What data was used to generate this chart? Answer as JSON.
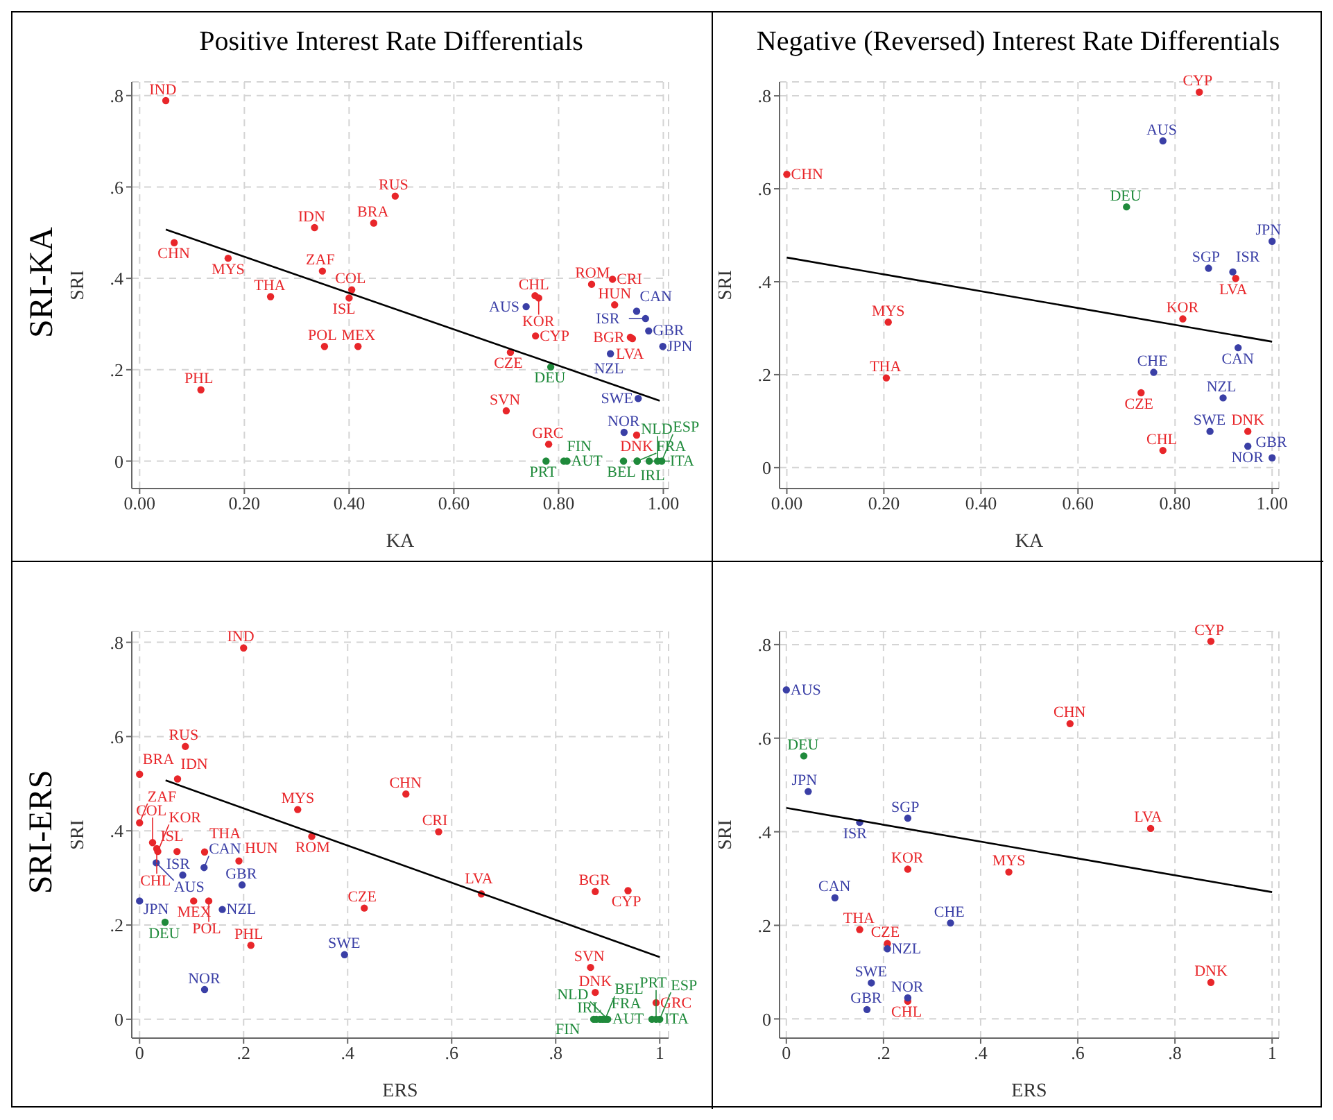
{
  "chart_data": [
    {
      "type": "scatter",
      "title": "Positive Interest Rate Differentials",
      "annotations": [
        "SRI-KA"
      ],
      "xlabel": "KA",
      "ylabel": "SRI",
      "xlim": [
        -0.015,
        1.01
      ],
      "ylim": [
        -0.06,
        0.83
      ],
      "xticks": [
        {
          "value": 0,
          "label": "0.00"
        },
        {
          "value": 0.2,
          "label": "0.20"
        },
        {
          "value": 0.4,
          "label": "0.40"
        },
        {
          "value": 0.6,
          "label": "0.60"
        },
        {
          "value": 0.8,
          "label": "0.80"
        },
        {
          "value": 1,
          "label": "1.00"
        }
      ],
      "yticks": [
        {
          "value": 0,
          "label": "0"
        },
        {
          "value": 0.2,
          "label": ".2"
        },
        {
          "value": 0.4,
          "label": ".4"
        },
        {
          "value": 0.6,
          "label": ".6"
        },
        {
          "value": 0.8,
          "label": ".8"
        }
      ],
      "grid": true,
      "marker": "circle",
      "series": [
        {
          "color": "#e8262a",
          "x": [
            0.05,
            0.066,
            0.169,
            0.25,
            0.349,
            0.334,
            0.488,
            0.447,
            0.405,
            0.4,
            0.353,
            0.417,
            0.117,
            0.755,
            0.762,
            0.863,
            0.903,
            0.907,
            0.756,
            0.708,
            0.937,
            0.941,
            0.7,
            0.781,
            0.949
          ],
          "values": [
            0.789,
            0.478,
            0.444,
            0.36,
            0.416,
            0.511,
            0.58,
            0.521,
            0.375,
            0.357,
            0.251,
            0.251,
            0.156,
            0.362,
            0.357,
            0.387,
            0.398,
            0.342,
            0.274,
            0.238,
            0.271,
            0.268,
            0.11,
            0.037,
            0.057
          ],
          "value_labels": [
            "IND",
            "CHN",
            "MYS",
            "THA",
            "ZAF",
            "IDN",
            "RUS",
            "BRA",
            "COL",
            "ISL",
            "POL",
            "MEX",
            "PHL",
            "CHL",
            "KOR",
            "ROM",
            "CRI",
            "HUN",
            "CYP",
            "CZE",
            "BGR",
            "LVA",
            "SVN",
            "GRC",
            "DNK"
          ]
        },
        {
          "color": "#3a3fa6",
          "x": [
            0.738,
            0.949,
            0.966,
            0.972,
            0.999,
            0.899,
            0.952,
            0.925
          ],
          "values": [
            0.338,
            0.328,
            0.312,
            0.285,
            0.251,
            0.235,
            0.137,
            0.063
          ],
          "value_labels": [
            "AUS",
            "CAN",
            "ISR",
            "GBR",
            "JPN",
            "NZL",
            "SWE",
            "NOR"
          ]
        },
        {
          "color": "#1f8a3b",
          "x": [
            0.785,
            0.776,
            0.81,
            0.816,
            0.924,
            0.95,
            0.95,
            0.973,
            0.989,
            0.997
          ],
          "values": [
            0.206,
            0,
            0,
            0,
            0,
            0,
            0,
            0,
            0,
            0
          ],
          "value_labels": [
            "DEU",
            "PRT",
            "FIN",
            "AUT",
            "BEL",
            "IRL",
            "FRA",
            "ITA",
            "NLD",
            "ESP"
          ]
        },
        {
          "type": "line",
          "marker": "none",
          "color": "#000000",
          "x": [
            0.05,
            0.993
          ],
          "values": [
            0.507,
            0.132
          ]
        }
      ]
    },
    {
      "type": "scatter",
      "title": "Negative (Reversed) Interest Rate Differentials",
      "xlabel": "KA",
      "ylabel": "SRI",
      "xlim": [
        -0.015,
        1.014
      ],
      "ylim": [
        -0.045,
        0.83
      ],
      "xticks": [
        {
          "value": 0,
          "label": "0.00"
        },
        {
          "value": 0.2,
          "label": "0.20"
        },
        {
          "value": 0.4,
          "label": "0.40"
        },
        {
          "value": 0.6,
          "label": "0.60"
        },
        {
          "value": 0.8,
          "label": "0.80"
        },
        {
          "value": 1,
          "label": "1.00"
        }
      ],
      "yticks": [
        0,
        {
          "value": 0.2,
          "label": ".2"
        },
        {
          "value": 0.4,
          "label": ".4"
        },
        {
          "value": 0.6,
          "label": ".6"
        },
        {
          "value": 0.8,
          "label": ".8"
        }
      ],
      "grid": true,
      "marker": "circle",
      "series": [
        {
          "color": "#e8262a",
          "x": [
            0.85,
            0,
            0.925,
            0.816,
            0.209,
            0.205,
            0.73,
            0.95,
            0.775
          ],
          "values": [
            0.808,
            0.631,
            0.407,
            0.32,
            0.313,
            0.193,
            0.161,
            0.078,
            0.037
          ],
          "value_labels": [
            "CYP",
            "CHN",
            "LVA",
            "KOR",
            "MYS",
            "THA",
            "CZE",
            "DNK",
            "CHL"
          ]
        },
        {
          "color": "#3a3fa6",
          "x": [
            0.775,
            1,
            0.869,
            0.919,
            0.93,
            0.756,
            0.899,
            0.872,
            0.95,
            1
          ],
          "values": [
            0.703,
            0.487,
            0.429,
            0.421,
            0.258,
            0.205,
            0.15,
            0.078,
            0.046,
            0.021
          ],
          "value_labels": [
            "AUS",
            "JPN",
            "SGP",
            "ISR",
            "CAN",
            "CHE",
            "NZL",
            "SWE",
            "NOR",
            "GBR"
          ]
        },
        {
          "color": "#1f8a3b",
          "x": [
            0.7
          ],
          "values": [
            0.561
          ],
          "value_labels": [
            "DEU"
          ]
        },
        {
          "type": "line",
          "marker": "none",
          "color": "#000000",
          "x": [
            0,
            1
          ],
          "values": [
            0.452,
            0.271
          ]
        }
      ]
    },
    {
      "type": "scatter",
      "annotations": [
        "SRI-ERS"
      ],
      "xlabel": "ERS",
      "ylabel": "SRI",
      "xlim": [
        -0.015,
        1.017
      ],
      "ylim": [
        -0.04,
        0.823
      ],
      "xticks": [
        {
          "value": 0,
          "label": "0"
        },
        {
          "value": 0.2,
          "label": ".2"
        },
        {
          "value": 0.4,
          "label": ".4"
        },
        {
          "value": 0.6,
          "label": ".6"
        },
        {
          "value": 0.8,
          "label": ".8"
        },
        {
          "value": 1,
          "label": "1"
        }
      ],
      "yticks": [
        {
          "value": 0,
          "label": "0"
        },
        {
          "value": 0.2,
          "label": ".2"
        },
        {
          "value": 0.4,
          "label": ".4"
        },
        {
          "value": 0.6,
          "label": ".6"
        },
        {
          "value": 0.8,
          "label": ".8"
        }
      ],
      "grid": true,
      "marker": "circle",
      "series": [
        {
          "color": "#e8262a",
          "x": [
            0.2,
            0.088,
            0,
            0.073,
            0,
            0.025,
            0.033,
            0.035,
            0.072,
            0.125,
            0.191,
            0.104,
            0.133,
            0.214,
            0.304,
            0.331,
            0.512,
            0.575,
            0.657,
            0.876,
            0.939,
            0.432,
            0.867,
            0.876,
            0.993
          ],
          "values": [
            0.788,
            0.579,
            0.52,
            0.51,
            0.417,
            0.375,
            0.362,
            0.356,
            0.356,
            0.355,
            0.336,
            0.251,
            0.251,
            0.157,
            0.445,
            0.388,
            0.478,
            0.398,
            0.266,
            0.271,
            0.273,
            0.236,
            0.11,
            0.057,
            0.035
          ],
          "value_labels": [
            "IND",
            "RUS",
            "BRA",
            "IDN",
            "ZAF",
            "COL",
            "CHL",
            "KOR",
            "ISL",
            "THA",
            "HUN",
            "MEX",
            "POL",
            "PHL",
            "MYS",
            "ROM",
            "CHN",
            "CRI",
            "LVA",
            "BGR",
            "CYP",
            "CZE",
            "SVN",
            "DNK",
            "GRC"
          ]
        },
        {
          "color": "#3a3fa6",
          "x": [
            0.032,
            0.124,
            0.083,
            0.197,
            0,
            0.159,
            0.394,
            0.125
          ],
          "values": [
            0.332,
            0.322,
            0.306,
            0.285,
            0.251,
            0.233,
            0.137,
            0.063
          ],
          "value_labels": [
            "AUS",
            "CAN",
            "ISR",
            "GBR",
            "JPN",
            "NZL",
            "SWE",
            "NOR"
          ]
        },
        {
          "color": "#1f8a3b",
          "x": [
            0.049,
            0.873,
            0.878,
            0.885,
            0.89,
            0.895,
            0.9,
            0.985,
            1,
            0.993
          ],
          "values": [
            0.206,
            0,
            0,
            0,
            0,
            0,
            0,
            0,
            0,
            0
          ],
          "value_labels": [
            "DEU",
            "IRL",
            "FIN",
            "AUT",
            "FRA",
            "BEL",
            "NLD",
            "ITA",
            "ESP",
            "PRT"
          ]
        },
        {
          "type": "line",
          "marker": "none",
          "color": "#000000",
          "x": [
            0.05,
            1
          ],
          "values": [
            0.507,
            0.132
          ]
        }
      ]
    },
    {
      "type": "scatter",
      "xlabel": "ERS",
      "ylabel": "SRI",
      "xlim": [
        -0.014,
        1.014
      ],
      "ylim": [
        -0.041,
        0.828
      ],
      "xticks": [
        0,
        {
          "value": 0.2,
          "label": ".2"
        },
        {
          "value": 0.4,
          "label": ".4"
        },
        {
          "value": 0.6,
          "label": ".6"
        },
        {
          "value": 0.8,
          "label": ".8"
        },
        1
      ],
      "yticks": [
        0,
        {
          "value": 0.2,
          "label": ".2"
        },
        {
          "value": 0.4,
          "label": ".4"
        },
        {
          "value": 0.6,
          "label": ".6"
        },
        {
          "value": 0.8,
          "label": ".8"
        }
      ],
      "grid": true,
      "marker": "circle",
      "series": [
        {
          "color": "#e8262a",
          "x": [
            0.874,
            0.584,
            0.75,
            0.25,
            0.458,
            0.151,
            0.208,
            0.25,
            0.874
          ],
          "values": [
            0.807,
            0.631,
            0.407,
            0.32,
            0.314,
            0.191,
            0.161,
            0.038,
            0.078
          ],
          "value_labels": [
            "CYP",
            "CHN",
            "LVA",
            "KOR",
            "MYS",
            "THA",
            "CZE",
            "CHL",
            "DNK"
          ]
        },
        {
          "color": "#3a3fa6",
          "x": [
            0,
            0.045,
            0.151,
            0.25,
            0.1,
            0.338,
            0.208,
            0.175,
            0.25,
            0.166
          ],
          "values": [
            0.703,
            0.486,
            0.42,
            0.429,
            0.259,
            0.205,
            0.15,
            0.077,
            0.045,
            0.02
          ],
          "value_labels": [
            "AUS",
            "JPN",
            "ISR",
            "SGP",
            "CAN",
            "CHE",
            "NZL",
            "SWE",
            "NOR",
            "GBR"
          ]
        },
        {
          "color": "#1f8a3b",
          "x": [
            0.036
          ],
          "values": [
            0.562
          ],
          "value_labels": [
            "DEU"
          ]
        },
        {
          "type": "line",
          "marker": "none",
          "color": "#000000",
          "x": [
            0,
            1
          ],
          "values": [
            0.451,
            0.271
          ]
        }
      ]
    }
  ]
}
